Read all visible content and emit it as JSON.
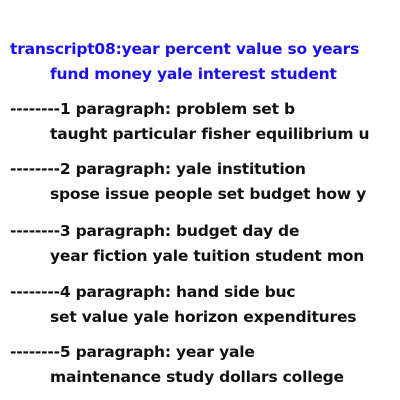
{
  "title": {
    "line1": "transcript08:year percent value so years",
    "line2": "fund money yale interest student"
  },
  "paragraphs": [
    {
      "line1": "--------1 paragraph: problem set b",
      "line2": "taught particular fisher equilibrium u"
    },
    {
      "line1": "--------2 paragraph: yale institution",
      "line2": "spose issue people set budget how y"
    },
    {
      "line1": "--------3 paragraph: budget day de",
      "line2": "year fiction yale tuition student mon"
    },
    {
      "line1": "--------4 paragraph: hand side buc",
      "line2": "set value yale horizon expenditures"
    },
    {
      "line1": "--------5 paragraph: year yale",
      "line2": "maintenance study dollars college"
    }
  ],
  "colors": {
    "title": "#1a0ff0",
    "text": "#111111",
    "background": "#ffffff"
  }
}
